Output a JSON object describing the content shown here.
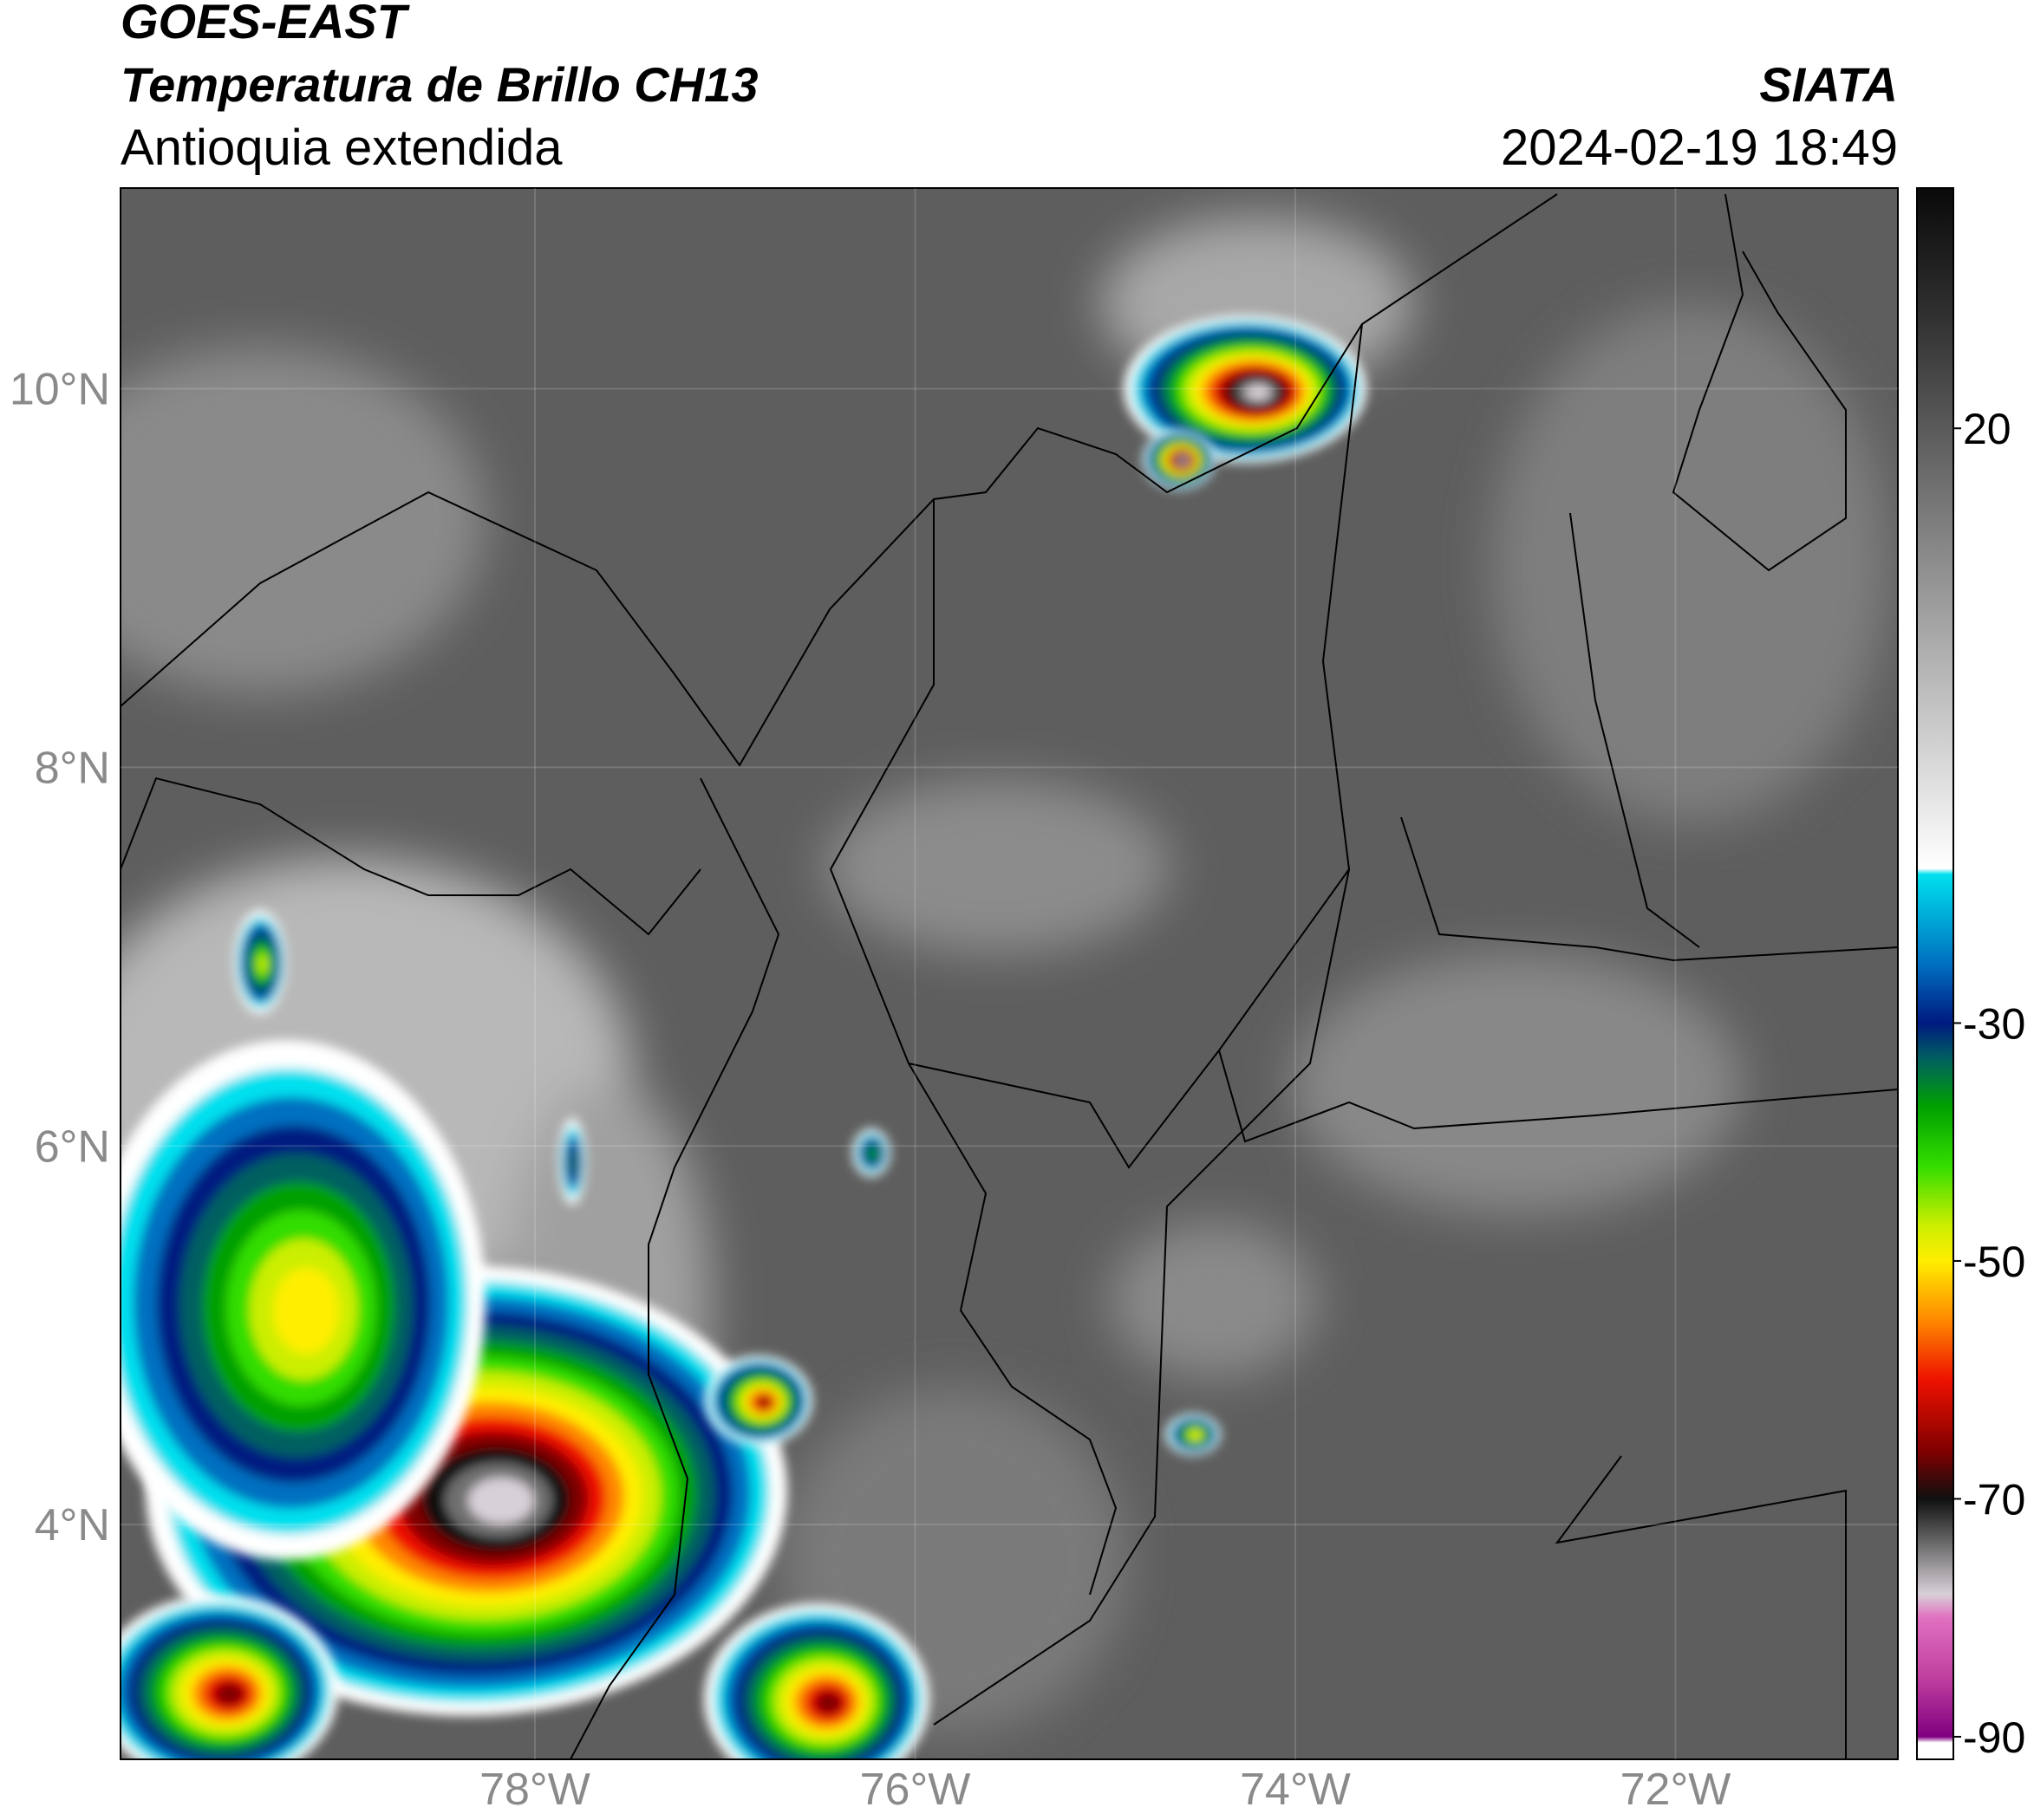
{
  "header": {
    "title": "GOES-EAST",
    "subtitle": "Temperatura de Brillo CH13",
    "region": "Antioquia extendida",
    "source": "SIATA",
    "datetime": "2024-02-19 18:49"
  },
  "map": {
    "xlim": [
      -80.18,
      -70.83
    ],
    "ylim": [
      2.76,
      11.06
    ],
    "xticks": [
      {
        "value": -78,
        "label": "78°W"
      },
      {
        "value": -76,
        "label": "76°W"
      },
      {
        "value": -74,
        "label": "74°W"
      },
      {
        "value": -72,
        "label": "72°W"
      }
    ],
    "yticks": [
      {
        "value": 4,
        "label": "4°N"
      },
      {
        "value": 6,
        "label": "6°N"
      },
      {
        "value": 8,
        "label": "8°N"
      },
      {
        "value": 10,
        "label": "10°N"
      }
    ],
    "grid": true
  },
  "colorbar": {
    "lim": [
      -91.9,
      40.2
    ],
    "ticks": [
      20,
      -30,
      -50,
      -70,
      -90
    ],
    "colormap": [
      {
        "value": 40.2,
        "color": "#0a0a0a"
      },
      {
        "value": 30,
        "color": "#2e2e2e"
      },
      {
        "value": 20,
        "color": "#5a5a5a"
      },
      {
        "value": 0,
        "color": "#b4b4b4"
      },
      {
        "value": -17,
        "color": "#ffffff"
      },
      {
        "value": -17.5,
        "color": "#00e0ee"
      },
      {
        "value": -25,
        "color": "#0070c0"
      },
      {
        "value": -30,
        "color": "#001a80"
      },
      {
        "value": -33,
        "color": "#006060"
      },
      {
        "value": -37,
        "color": "#00a000"
      },
      {
        "value": -42,
        "color": "#33dd00"
      },
      {
        "value": -47,
        "color": "#ccee00"
      },
      {
        "value": -50,
        "color": "#ffee00"
      },
      {
        "value": -55,
        "color": "#ff8800"
      },
      {
        "value": -60,
        "color": "#ee1100"
      },
      {
        "value": -66,
        "color": "#800000"
      },
      {
        "value": -70,
        "color": "#101010"
      },
      {
        "value": -74,
        "color": "#707070"
      },
      {
        "value": -78,
        "color": "#d8d0d8"
      },
      {
        "value": -80,
        "color": "#e070c0"
      },
      {
        "value": -85,
        "color": "#c040a0"
      },
      {
        "value": -90,
        "color": "#800080"
      },
      {
        "value": -90.5,
        "color": "#ffffff"
      },
      {
        "value": -91.9,
        "color": "#ffffff"
      }
    ]
  }
}
